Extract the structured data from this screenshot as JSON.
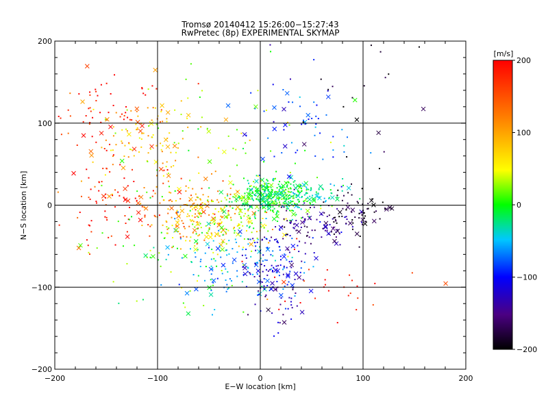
{
  "chart_data": {
    "type": "scatter",
    "title": "Tromsø 20140412 15:26:00−15:27:43",
    "subtitle": "RwPretec (8p) EXPERIMENTAL SKYMAP",
    "xlabel": "E−W location [km]",
    "ylabel": "N−S location [km]",
    "xlim": [
      -200,
      200
    ],
    "ylim": [
      -200,
      200
    ],
    "xticks": [
      "−200",
      "−100",
      "0",
      "100",
      "200"
    ],
    "yticks": [
      "200",
      "100",
      "0",
      "−100",
      "−200"
    ],
    "grid_lines_at": [
      -100,
      0,
      100
    ],
    "colorbar": {
      "label": "[m/s]",
      "range": [
        -200,
        200
      ],
      "ticks": [
        "200",
        "100",
        "0",
        "−100",
        "−200"
      ],
      "colors": [
        "#000000",
        "#4b0082",
        "#0000ff",
        "#00c8ff",
        "#00ff00",
        "#ffff00",
        "#ff8000",
        "#ff0000"
      ]
    },
    "markers": [
      "dot",
      "x"
    ],
    "clusters": [
      {
        "cx": -60,
        "cy": -10,
        "sx": 25,
        "sy": 18,
        "v": 130,
        "n": 180
      },
      {
        "cx": -150,
        "cy": 110,
        "sx": 30,
        "sy": 25,
        "v": 190,
        "n": 70
      },
      {
        "cx": -110,
        "cy": 70,
        "sx": 30,
        "sy": 30,
        "v": 110,
        "n": 110
      },
      {
        "cx": -140,
        "cy": 5,
        "sx": 30,
        "sy": 30,
        "v": 190,
        "n": 90
      },
      {
        "cx": -30,
        "cy": -20,
        "sx": 25,
        "sy": 18,
        "v": 70,
        "n": 110
      },
      {
        "cx": 10,
        "cy": 10,
        "sx": 18,
        "sy": 12,
        "v": 20,
        "n": 320
      },
      {
        "cx": 40,
        "cy": 12,
        "sx": 20,
        "sy": 10,
        "v": 0,
        "n": 110
      },
      {
        "cx": -20,
        "cy": -70,
        "sx": 30,
        "sy": 25,
        "v": -40,
        "n": 130
      },
      {
        "cx": 15,
        "cy": -80,
        "sx": 15,
        "sy": 30,
        "v": -110,
        "n": 140
      },
      {
        "cx": 60,
        "cy": -25,
        "sx": 20,
        "sy": 12,
        "v": -140,
        "n": 90
      },
      {
        "cx": 95,
        "cy": -5,
        "sx": 15,
        "sy": 15,
        "v": -185,
        "n": 60
      },
      {
        "cx": 40,
        "cy": 100,
        "sx": 30,
        "sy": 30,
        "v": -70,
        "n": 60
      },
      {
        "cx": 120,
        "cy": 140,
        "sx": 40,
        "sy": 40,
        "v": -200,
        "n": 20
      },
      {
        "cx": 60,
        "cy": -90,
        "sx": 50,
        "sy": 30,
        "v": 190,
        "n": 30
      },
      {
        "cx": -80,
        "cy": -60,
        "sx": 40,
        "sy": 40,
        "v": 40,
        "n": 70
      },
      {
        "cx": -40,
        "cy": 80,
        "sx": 40,
        "sy": 40,
        "v": 60,
        "n": 50
      }
    ]
  }
}
